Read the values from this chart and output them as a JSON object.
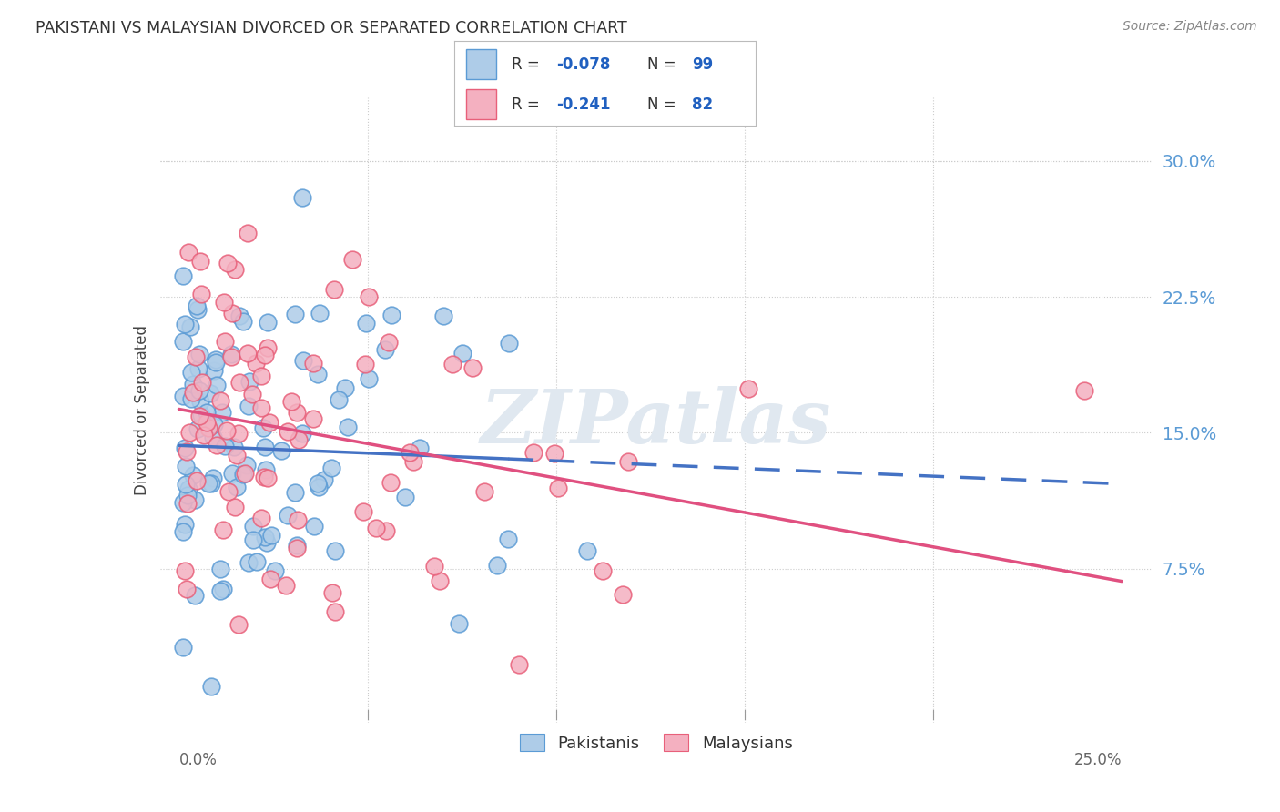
{
  "title": "PAKISTANI VS MALAYSIAN DIVORCED OR SEPARATED CORRELATION CHART",
  "source": "Source: ZipAtlas.com",
  "ylabel": "Divorced or Separated",
  "ytick_labels": [
    "7.5%",
    "15.0%",
    "22.5%",
    "30.0%"
  ],
  "ytick_values": [
    0.075,
    0.15,
    0.225,
    0.3
  ],
  "xlim": [
    0.0,
    0.25
  ],
  "ylim": [
    0.0,
    0.32
  ],
  "pakistani_face_color": "#aecce8",
  "pakistani_edge_color": "#5b9bd5",
  "malaysian_face_color": "#f4b0c0",
  "malaysian_edge_color": "#e8607a",
  "trend_blue": "#4472c4",
  "trend_pink": "#e05080",
  "tick_color": "#5b9bd5",
  "grid_color": "#cccccc",
  "watermark_color": "#e0e8f0",
  "legend_value_color": "#2060c0",
  "pakistani_R": -0.078,
  "pakistani_N": 99,
  "malaysian_R": -0.241,
  "malaysian_N": 82,
  "pak_intercept": 0.143,
  "pak_slope": -0.085,
  "mal_intercept": 0.163,
  "mal_slope": -0.38,
  "background": "#ffffff"
}
